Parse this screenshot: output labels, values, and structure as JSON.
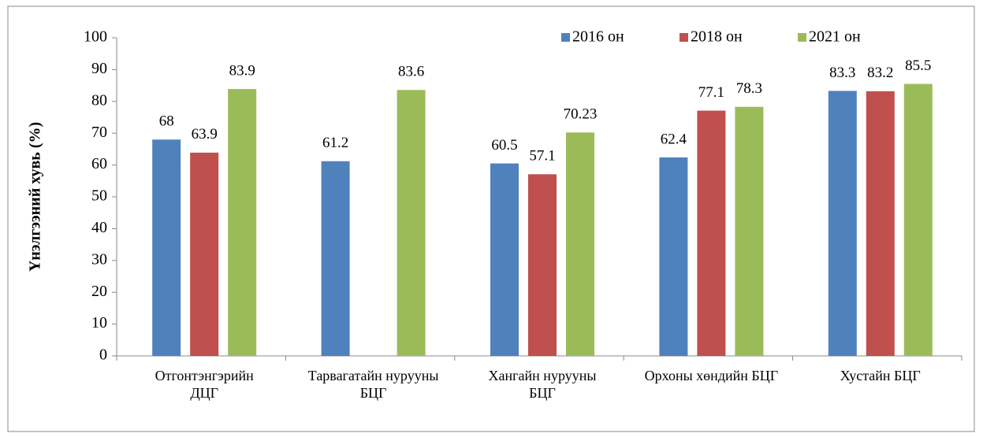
{
  "chart_data": {
    "type": "bar",
    "y_label": "Үнэлгээний хувь (%)",
    "categories": [
      "Отгонтэнгэрийн ДЦГ",
      "Тарвагатайн нурууны БЦГ",
      "Хангайн нурууны БЦГ",
      "Орхоны хөндийн БЦГ",
      "Хустайн БЦГ"
    ],
    "series": [
      {
        "name": "2016 он",
        "color": "#4f81bd",
        "values": [
          68,
          61.2,
          60.5,
          62.4,
          83.3
        ]
      },
      {
        "name": "2018 он",
        "color": "#c0504d",
        "values": [
          63.9,
          null,
          57.1,
          77.1,
          83.2
        ]
      },
      {
        "name": "2021 он",
        "color": "#9bbb59",
        "values": [
          83.9,
          83.6,
          70.23,
          78.3,
          85.5
        ]
      }
    ],
    "ylim": [
      0,
      100
    ],
    "yticks": [
      0,
      10,
      20,
      30,
      40,
      50,
      60,
      70,
      80,
      90,
      100
    ],
    "legend": "top-right",
    "grid": false
  }
}
